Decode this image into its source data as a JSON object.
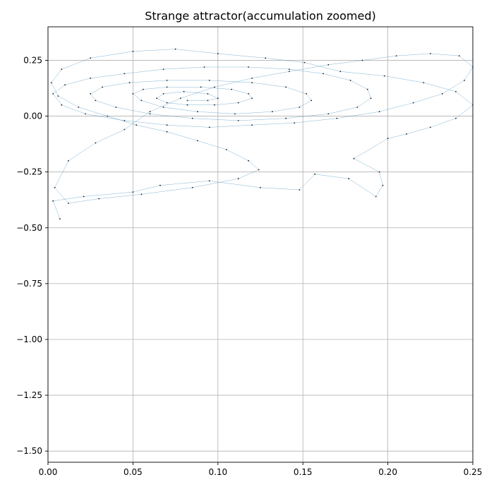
{
  "chart_data": {
    "type": "scatter",
    "title": "Strange attractor(accumulation zoomed)",
    "xlabel": "",
    "ylabel": "",
    "xlim": [
      0.0,
      0.25
    ],
    "ylim": [
      -1.55,
      0.4
    ],
    "grid": true,
    "x_ticks": [
      0.0,
      0.05,
      0.1,
      0.15,
      0.2,
      0.25
    ],
    "x_tick_labels": [
      "0.00",
      "0.05",
      "0.10",
      "0.15",
      "0.20",
      "0.25"
    ],
    "y_ticks": [
      0.25,
      0.0,
      -0.25,
      -0.5,
      -0.75,
      -1.0,
      -1.25,
      -1.5
    ],
    "y_tick_labels": [
      "0.25",
      "0.00",
      "−0.25",
      "−0.50",
      "−0.75",
      "−1.00",
      "−1.25",
      "−1.50"
    ],
    "marker_color": "#1a1a1a",
    "line_color": "#1f77b4",
    "series": [
      {
        "values": [
          [
            0.007,
            -0.46
          ],
          [
            0.003,
            -0.38
          ],
          [
            0.021,
            -0.36
          ],
          [
            0.05,
            -0.34
          ],
          [
            0.066,
            -0.31
          ],
          [
            0.095,
            -0.29
          ],
          [
            0.125,
            -0.32
          ],
          [
            0.148,
            -0.33
          ],
          [
            0.157,
            -0.26
          ],
          [
            0.177,
            -0.28
          ],
          [
            0.193,
            -0.36
          ],
          [
            0.197,
            -0.31
          ],
          [
            0.195,
            -0.25
          ],
          [
            0.18,
            -0.19
          ],
          [
            0.2,
            -0.1
          ],
          [
            0.211,
            -0.08
          ],
          [
            0.225,
            -0.05
          ],
          [
            0.24,
            -0.01
          ],
          [
            0.25,
            0.05
          ],
          [
            0.24,
            0.11
          ],
          [
            0.221,
            0.15
          ],
          [
            0.198,
            0.18
          ],
          [
            0.172,
            0.2
          ],
          [
            0.151,
            0.24
          ],
          [
            0.128,
            0.26
          ],
          [
            0.1,
            0.28
          ],
          [
            0.075,
            0.3
          ],
          [
            0.05,
            0.29
          ],
          [
            0.025,
            0.26
          ],
          [
            0.008,
            0.21
          ],
          [
            0.002,
            0.15
          ],
          [
            0.006,
            0.09
          ],
          [
            0.018,
            0.04
          ],
          [
            0.035,
            0.0
          ],
          [
            0.052,
            -0.04
          ],
          [
            0.07,
            -0.07
          ],
          [
            0.088,
            -0.11
          ],
          [
            0.105,
            -0.15
          ],
          [
            0.118,
            -0.2
          ],
          [
            0.124,
            -0.24
          ],
          [
            0.112,
            -0.28
          ],
          [
            0.085,
            -0.32
          ],
          [
            0.055,
            -0.35
          ],
          [
            0.03,
            -0.37
          ],
          [
            0.012,
            -0.39
          ],
          [
            0.004,
            -0.32
          ],
          [
            0.012,
            -0.2
          ],
          [
            0.028,
            -0.12
          ],
          [
            0.045,
            -0.06
          ],
          [
            0.06,
            0.02
          ],
          [
            0.078,
            0.08
          ],
          [
            0.098,
            0.13
          ],
          [
            0.12,
            0.17
          ],
          [
            0.142,
            0.2
          ],
          [
            0.165,
            0.23
          ],
          [
            0.185,
            0.25
          ],
          [
            0.205,
            0.27
          ],
          [
            0.225,
            0.28
          ],
          [
            0.242,
            0.27
          ],
          [
            0.25,
            0.22
          ],
          [
            0.245,
            0.16
          ],
          [
            0.232,
            0.1
          ],
          [
            0.215,
            0.06
          ],
          [
            0.195,
            0.02
          ],
          [
            0.17,
            -0.01
          ],
          [
            0.145,
            -0.03
          ],
          [
            0.12,
            -0.04
          ],
          [
            0.095,
            -0.05
          ],
          [
            0.07,
            -0.04
          ],
          [
            0.045,
            -0.02
          ],
          [
            0.022,
            0.01
          ],
          [
            0.008,
            0.05
          ],
          [
            0.003,
            0.1
          ],
          [
            0.01,
            0.14
          ],
          [
            0.025,
            0.17
          ],
          [
            0.045,
            0.19
          ],
          [
            0.068,
            0.21
          ],
          [
            0.092,
            0.22
          ],
          [
            0.118,
            0.22
          ],
          [
            0.142,
            0.21
          ],
          [
            0.162,
            0.19
          ],
          [
            0.178,
            0.16
          ],
          [
            0.188,
            0.12
          ],
          [
            0.19,
            0.08
          ],
          [
            0.182,
            0.04
          ],
          [
            0.165,
            0.01
          ],
          [
            0.14,
            -0.01
          ],
          [
            0.112,
            -0.02
          ],
          [
            0.085,
            -0.01
          ],
          [
            0.06,
            0.01
          ],
          [
            0.04,
            0.04
          ],
          [
            0.028,
            0.07
          ],
          [
            0.025,
            0.1
          ],
          [
            0.032,
            0.13
          ],
          [
            0.048,
            0.15
          ],
          [
            0.07,
            0.16
          ],
          [
            0.095,
            0.16
          ],
          [
            0.12,
            0.15
          ],
          [
            0.14,
            0.13
          ],
          [
            0.152,
            0.1
          ],
          [
            0.155,
            0.07
          ],
          [
            0.148,
            0.04
          ],
          [
            0.132,
            0.02
          ],
          [
            0.11,
            0.01
          ],
          [
            0.088,
            0.02
          ],
          [
            0.068,
            0.04
          ],
          [
            0.055,
            0.07
          ],
          [
            0.05,
            0.1
          ],
          [
            0.056,
            0.12
          ],
          [
            0.07,
            0.13
          ],
          [
            0.09,
            0.13
          ],
          [
            0.108,
            0.12
          ],
          [
            0.118,
            0.1
          ],
          [
            0.12,
            0.08
          ],
          [
            0.112,
            0.06
          ],
          [
            0.098,
            0.05
          ],
          [
            0.082,
            0.05
          ],
          [
            0.07,
            0.06
          ],
          [
            0.064,
            0.08
          ],
          [
            0.068,
            0.1
          ],
          [
            0.08,
            0.11
          ],
          [
            0.094,
            0.1
          ],
          [
            0.1,
            0.08
          ],
          [
            0.094,
            0.07
          ],
          [
            0.082,
            0.07
          ]
        ]
      }
    ]
  }
}
